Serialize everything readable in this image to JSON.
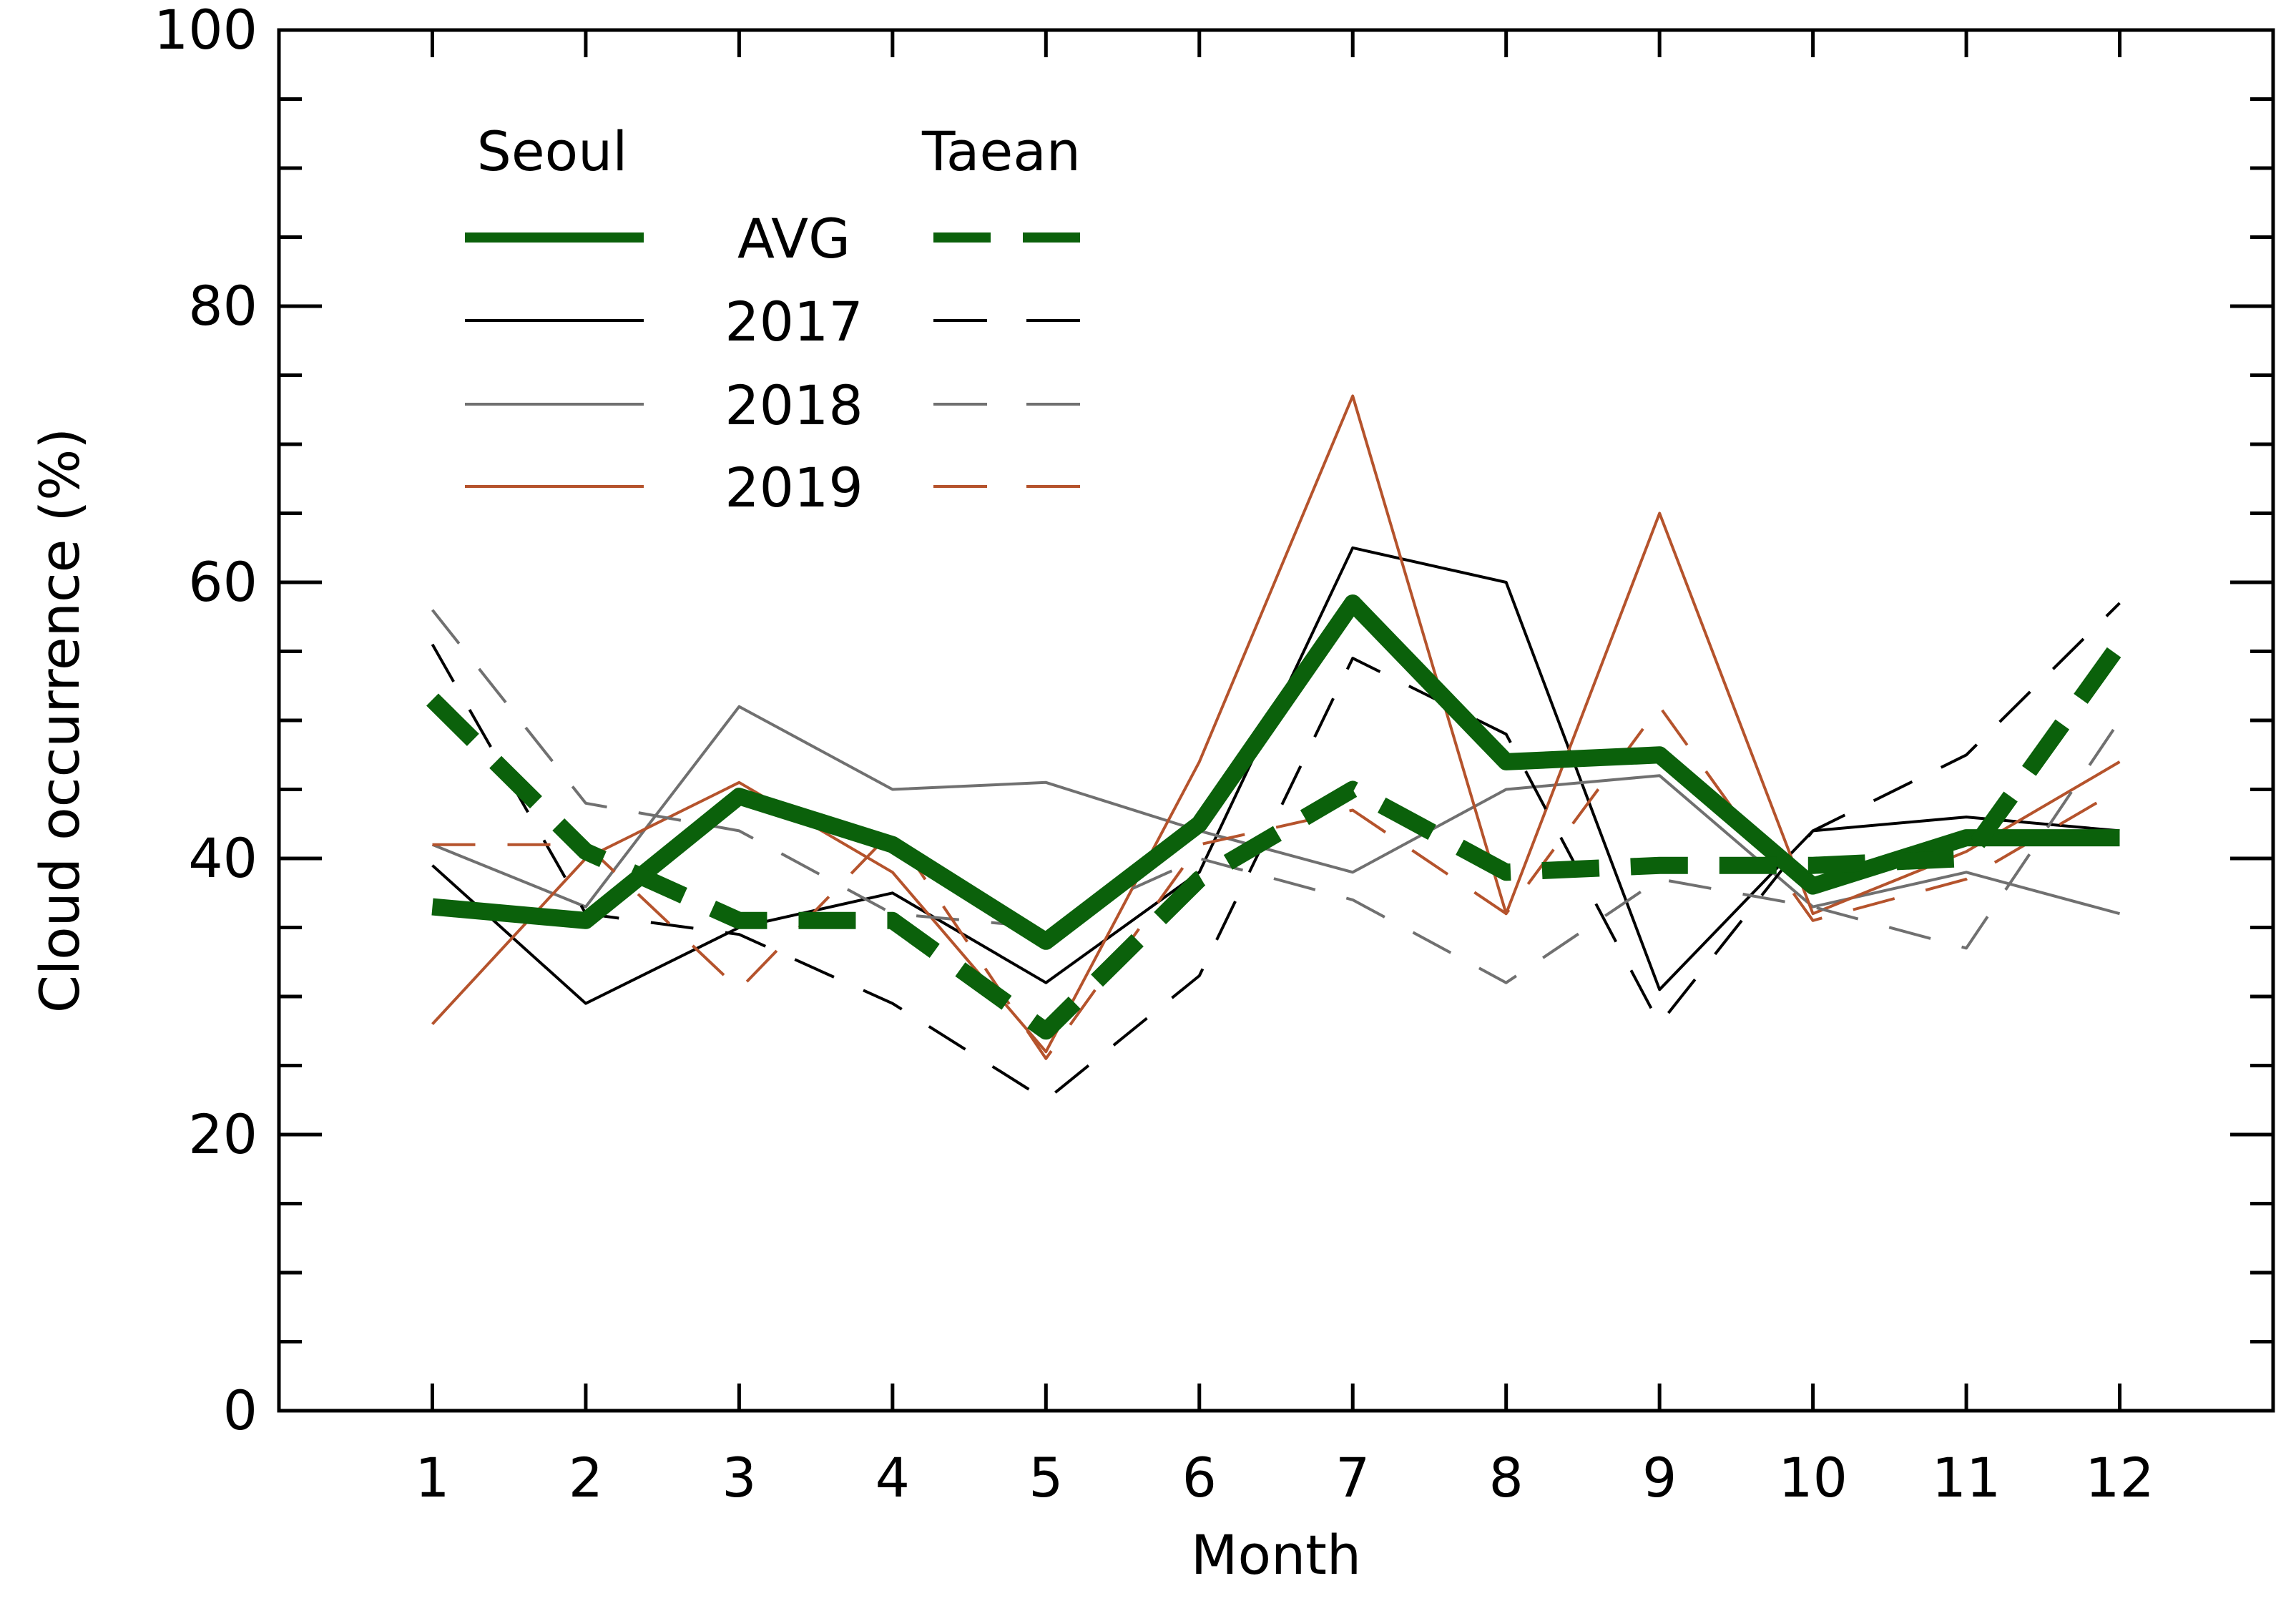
{
  "chart_data": {
    "type": "line",
    "title": "",
    "xlabel": "Month",
    "ylabel": "Cloud occurrence (%)",
    "x": [
      1,
      2,
      3,
      4,
      5,
      6,
      7,
      8,
      9,
      10,
      11,
      12
    ],
    "xlim": [
      0,
      13
    ],
    "ylim": [
      0,
      100
    ],
    "x_ticks": [
      1,
      2,
      3,
      4,
      5,
      6,
      7,
      8,
      9,
      10,
      11,
      12
    ],
    "y_ticks": [
      0,
      20,
      40,
      60,
      80,
      100
    ],
    "y_minor_step": 5,
    "grid": false,
    "legend": {
      "placement": "top-left",
      "headers": [
        "Seoul",
        "Taean"
      ],
      "rows": [
        "AVG",
        "2017",
        "2018",
        "2019"
      ]
    },
    "series": [
      {
        "name": "Seoul 2017",
        "site": "Seoul",
        "year": "2017",
        "color": "#000000",
        "style": "solid",
        "weight": "thin",
        "values": [
          39.5,
          29.5,
          35,
          37.5,
          31,
          39,
          62.5,
          60,
          30.5,
          42,
          43,
          42
        ]
      },
      {
        "name": "Seoul 2018",
        "site": "Seoul",
        "year": "2018",
        "color": "#707070",
        "style": "solid",
        "weight": "thin",
        "values": [
          41,
          36.5,
          51,
          45,
          45.5,
          42,
          39,
          45,
          46,
          36.5,
          39,
          36
        ]
      },
      {
        "name": "Seoul 2019",
        "site": "Seoul",
        "year": "2019",
        "color": "#b5532c",
        "style": "solid",
        "weight": "thin",
        "values": [
          28,
          40,
          45.5,
          39,
          26,
          47,
          73.5,
          36,
          65,
          36,
          40.5,
          47
        ]
      },
      {
        "name": "Taean 2017",
        "site": "Taean",
        "year": "2017",
        "color": "#000000",
        "style": "dashed",
        "weight": "thin",
        "values": [
          55.5,
          36,
          34.5,
          29.5,
          22.5,
          31.5,
          54.5,
          49,
          28,
          42,
          47.5,
          58.5
        ]
      },
      {
        "name": "Taean 2018",
        "site": "Taean",
        "year": "2018",
        "color": "#707070",
        "style": "dashed",
        "weight": "thin",
        "values": [
          58,
          44,
          42,
          36,
          35,
          40,
          37,
          31,
          38.5,
          36.5,
          33.5,
          50
        ]
      },
      {
        "name": "Taean 2019",
        "site": "Taean",
        "year": "2019",
        "color": "#b5532c",
        "style": "dashed",
        "weight": "thin",
        "values": [
          41,
          41,
          30.5,
          42,
          25.5,
          41,
          43.5,
          36,
          51,
          35.5,
          38.5,
          45
        ]
      },
      {
        "name": "Seoul AVG",
        "site": "Seoul",
        "year": "AVG",
        "color": "#0b610b",
        "style": "solid",
        "weight": "bold",
        "values": [
          36.5,
          35.5,
          44.5,
          41,
          34,
          42.5,
          58.5,
          47,
          47.5,
          38,
          41.5,
          41.5
        ]
      },
      {
        "name": "Taean AVG",
        "site": "Taean",
        "year": "AVG",
        "color": "#0b610b",
        "style": "dashed",
        "weight": "bold",
        "values": [
          51.5,
          40.5,
          35.5,
          35.5,
          27.5,
          38.5,
          45,
          39,
          39.5,
          39.5,
          40,
          55.5
        ]
      }
    ]
  }
}
